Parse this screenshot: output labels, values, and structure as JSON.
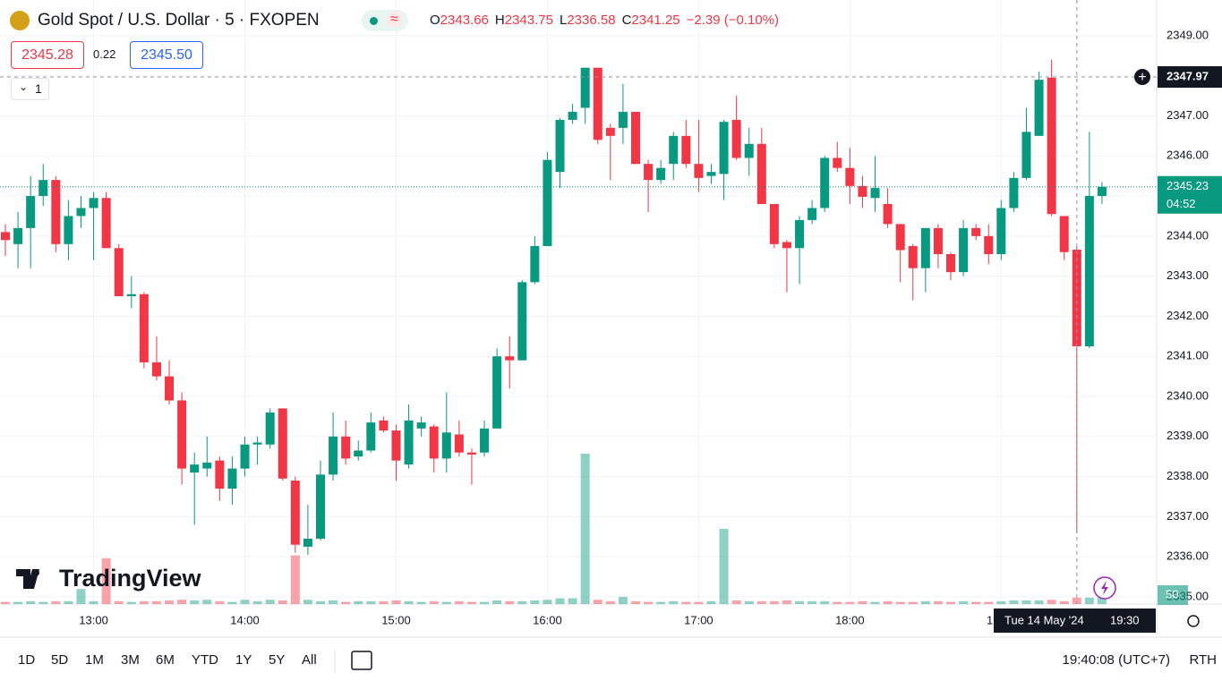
{
  "header": {
    "symbol": "Gold Spot / U.S. Dollar · 5 · FXOPEN",
    "ohlc": [
      {
        "key": "O",
        "value": "2343.66"
      },
      {
        "key": "H",
        "value": "2343.75"
      },
      {
        "key": "L",
        "value": "2336.58"
      },
      {
        "key": "C",
        "value": "2341.25"
      }
    ],
    "change": "−2.39 (−0.10%)",
    "bid": "2345.28",
    "spread": "0.22",
    "ask": "2345.50",
    "indicators": "1"
  },
  "watermark": "TradingView",
  "toolbar": {
    "timeframes": [
      "1D",
      "5D",
      "1M",
      "3M",
      "6M",
      "YTD",
      "1Y",
      "5Y",
      "All"
    ],
    "clock": "19:40:08 (UTC+7)",
    "session": "RTH"
  },
  "chart_data": {
    "type": "candlestick",
    "x": [
      "12:25",
      "12:30",
      "12:35",
      "12:40",
      "12:45",
      "12:50",
      "12:55",
      "13:00",
      "13:05",
      "13:10",
      "13:15",
      "13:20",
      "13:25",
      "13:30",
      "13:35",
      "13:40",
      "13:45",
      "13:50",
      "13:55",
      "14:00",
      "14:05",
      "14:10",
      "14:15",
      "14:20",
      "14:25",
      "14:30",
      "14:35",
      "14:40",
      "14:45",
      "14:50",
      "14:55",
      "15:00",
      "15:05",
      "15:10",
      "15:15",
      "15:20",
      "15:25",
      "15:30",
      "15:35",
      "15:40",
      "15:45",
      "15:50",
      "15:55",
      "16:00",
      "16:05",
      "16:10",
      "16:15",
      "16:20",
      "16:25",
      "16:30",
      "16:35",
      "16:40",
      "16:45",
      "16:50",
      "16:55",
      "17:00",
      "17:05",
      "17:10",
      "17:15",
      "17:20",
      "17:25",
      "17:30",
      "17:35",
      "17:40",
      "17:45",
      "17:50",
      "17:55",
      "18:00",
      "18:05",
      "18:10",
      "18:15",
      "18:20",
      "18:25",
      "18:30",
      "18:35",
      "18:40",
      "18:45",
      "18:50",
      "18:55",
      "19:00",
      "19:05",
      "19:10",
      "19:15",
      "19:20",
      "19:25",
      "19:30",
      "19:35",
      "19:40"
    ],
    "open": [
      2344.1,
      2343.8,
      2344.2,
      2345.0,
      2345.4,
      2343.8,
      2344.5,
      2344.7,
      2344.95,
      2343.7,
      2342.5,
      2342.55,
      2340.85,
      2340.5,
      2339.9,
      2338.1,
      2338.2,
      2338.4,
      2337.7,
      2338.2,
      2338.8,
      2338.8,
      2339.7,
      2337.9,
      2336.25,
      2336.45,
      2338.05,
      2339.0,
      2338.5,
      2338.65,
      2339.4,
      2339.15,
      2338.3,
      2339.2,
      2339.25,
      2338.45,
      2339.05,
      2338.6,
      2338.6,
      2339.2,
      2341.0,
      2340.9,
      2342.85,
      2343.75,
      2345.6,
      2346.9,
      2347.2,
      2348.2,
      2346.7,
      2346.7,
      2347.1,
      2345.8,
      2345.4,
      2345.8,
      2346.5,
      2345.8,
      2345.5,
      2345.55,
      2346.9,
      2345.95,
      2346.3,
      2344.8,
      2343.85,
      2343.7,
      2344.4,
      2344.7,
      2345.95,
      2345.7,
      2345.25,
      2344.95,
      2344.8,
      2344.3,
      2343.75,
      2343.2,
      2344.2,
      2343.55,
      2343.1,
      2344.2,
      2344.0,
      2343.55,
      2344.7,
      2345.45,
      2346.5,
      2347.95,
      2344.5,
      2343.66,
      2341.25,
      2345.0
    ],
    "high": [
      2344.3,
      2344.6,
      2345.5,
      2345.8,
      2345.5,
      2344.9,
      2345.0,
      2345.1,
      2345.1,
      2343.8,
      2343.0,
      2342.6,
      2341.5,
      2340.9,
      2340.1,
      2338.6,
      2339.0,
      2338.5,
      2338.5,
      2339.0,
      2339.0,
      2339.7,
      2339.7,
      2338.0,
      2337.3,
      2338.4,
      2339.6,
      2339.4,
      2338.9,
      2339.6,
      2339.5,
      2339.3,
      2339.8,
      2339.5,
      2339.3,
      2340.1,
      2339.4,
      2338.7,
      2339.4,
      2341.2,
      2341.5,
      2342.9,
      2344.0,
      2346.1,
      2346.95,
      2347.3,
      2348.2,
      2348.2,
      2346.8,
      2347.8,
      2347.1,
      2345.9,
      2345.9,
      2346.6,
      2346.9,
      2346.9,
      2345.8,
      2346.9,
      2347.5,
      2346.7,
      2346.7,
      2344.8,
      2343.9,
      2344.5,
      2344.9,
      2346.0,
      2346.35,
      2346.2,
      2345.5,
      2346.0,
      2345.2,
      2344.3,
      2343.8,
      2344.2,
      2344.3,
      2343.6,
      2344.4,
      2344.3,
      2344.3,
      2344.9,
      2345.6,
      2347.2,
      2348.1,
      2348.4,
      2344.5,
      2343.75,
      2346.6,
      2345.35
    ],
    "low": [
      2343.5,
      2343.2,
      2343.2,
      2344.75,
      2343.6,
      2343.4,
      2344.2,
      2343.4,
      2343.7,
      2342.5,
      2342.2,
      2340.7,
      2340.4,
      2339.8,
      2337.8,
      2336.8,
      2338.0,
      2337.4,
      2337.3,
      2338.0,
      2338.3,
      2338.7,
      2337.9,
      2336.1,
      2336.05,
      2336.4,
      2337.9,
      2338.3,
      2338.4,
      2338.6,
      2339.1,
      2337.9,
      2338.2,
      2339.0,
      2338.1,
      2338.1,
      2338.5,
      2337.8,
      2338.5,
      2339.2,
      2340.2,
      2340.9,
      2342.8,
      2343.75,
      2345.2,
      2346.8,
      2346.8,
      2346.3,
      2345.4,
      2346.3,
      2345.8,
      2344.6,
      2345.3,
      2345.4,
      2345.7,
      2345.1,
      2345.3,
      2344.9,
      2345.9,
      2345.5,
      2344.8,
      2343.7,
      2342.6,
      2342.8,
      2344.3,
      2344.6,
      2345.6,
      2344.8,
      2344.7,
      2344.6,
      2344.2,
      2342.85,
      2342.4,
      2342.6,
      2343.2,
      2342.9,
      2343.0,
      2343.9,
      2343.3,
      2343.4,
      2344.6,
      2345.4,
      2346.5,
      2344.5,
      2343.4,
      2336.58,
      2341.2,
      2344.8
    ],
    "close": [
      2343.9,
      2344.2,
      2345.0,
      2345.4,
      2343.8,
      2344.5,
      2344.7,
      2344.95,
      2343.7,
      2342.5,
      2342.55,
      2340.85,
      2340.5,
      2339.9,
      2338.2,
      2338.3,
      2338.35,
      2337.7,
      2338.2,
      2338.8,
      2338.85,
      2339.6,
      2337.95,
      2336.3,
      2336.45,
      2338.05,
      2339.0,
      2338.45,
      2338.65,
      2339.35,
      2339.15,
      2338.4,
      2339.4,
      2339.35,
      2338.45,
      2339.1,
      2338.6,
      2338.55,
      2339.2,
      2341.0,
      2340.9,
      2342.85,
      2343.75,
      2345.9,
      2346.9,
      2347.1,
      2348.2,
      2346.4,
      2346.5,
      2347.1,
      2345.8,
      2345.4,
      2345.7,
      2346.5,
      2345.8,
      2345.45,
      2345.6,
      2346.85,
      2345.95,
      2346.3,
      2344.8,
      2343.8,
      2343.7,
      2344.4,
      2344.7,
      2345.95,
      2345.7,
      2345.25,
      2344.98,
      2345.2,
      2344.3,
      2343.65,
      2343.2,
      2344.2,
      2343.55,
      2343.1,
      2344.2,
      2344.0,
      2343.55,
      2344.7,
      2345.45,
      2346.6,
      2347.9,
      2344.55,
      2343.6,
      2341.25,
      2345.0,
      2345.23
    ],
    "volume": [
      15,
      15,
      20,
      15,
      20,
      20,
      105,
      20,
      320,
      20,
      15,
      20,
      20,
      25,
      30,
      25,
      30,
      20,
      15,
      30,
      20,
      30,
      25,
      340,
      30,
      20,
      25,
      15,
      20,
      20,
      20,
      25,
      20,
      15,
      20,
      15,
      20,
      15,
      15,
      25,
      20,
      20,
      25,
      30,
      40,
      40,
      1050,
      30,
      20,
      50,
      20,
      15,
      15,
      20,
      15,
      15,
      20,
      525,
      25,
      20,
      20,
      20,
      25,
      20,
      20,
      20,
      15,
      15,
      20,
      15,
      20,
      15,
      15,
      20,
      20,
      15,
      20,
      15,
      15,
      20,
      25,
      25,
      25,
      30,
      20,
      45,
      45,
      50
    ],
    "ylim": [
      2334.82,
      2349.89
    ],
    "yticks": [
      {
        "value": 2335,
        "label": "2335.00"
      },
      {
        "value": 2336,
        "label": "2336.00"
      },
      {
        "value": 2337,
        "label": "2337.00"
      },
      {
        "value": 2338,
        "label": "2338.00"
      },
      {
        "value": 2339,
        "label": "2339.00"
      },
      {
        "value": 2340,
        "label": "2340.00"
      },
      {
        "value": 2341,
        "label": "2341.00"
      },
      {
        "value": 2342,
        "label": "2342.00"
      },
      {
        "value": 2343,
        "label": "2343.00"
      },
      {
        "value": 2344,
        "label": "2344.00"
      },
      {
        "value": 2345,
        "label": "2345.00"
      },
      {
        "value": 2346,
        "label": "2346.00"
      },
      {
        "value": 2347,
        "label": "2347.00"
      },
      {
        "value": 2348,
        "label": "2348.00"
      },
      {
        "value": 2349,
        "label": "2349.00"
      }
    ],
    "xticks": [
      "13:00",
      "14:00",
      "15:00",
      "16:00",
      "17:00",
      "18:00",
      "19:00"
    ],
    "grid": true,
    "up_color": "#089981",
    "down_color": "#f23645",
    "last_price": {
      "value": 2345.23,
      "countdown": "04:52"
    },
    "crosshair": {
      "price": 2347.97,
      "date": "Tue 14 May '24",
      "time": "19:30"
    }
  }
}
